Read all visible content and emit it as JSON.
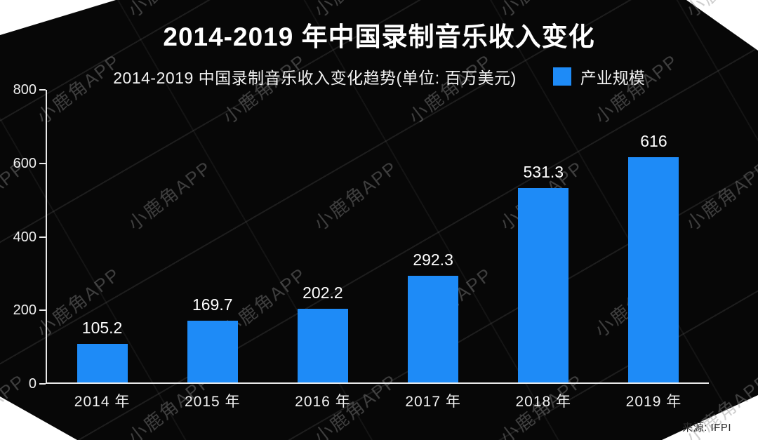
{
  "title": "2014-2019 年中国录制音乐收入变化",
  "subtitle": "2014-2019 中国录制音乐收入变化趋势(单位: 百万美元)",
  "legend": {
    "label": "产业规模",
    "color": "#1e8bf7"
  },
  "source": "来源: IFPI",
  "watermark": "小鹿角APP",
  "chart_data": {
    "type": "bar",
    "title": "2014-2019 中国录制音乐收入变化趋势",
    "unit_label": "单位: 百万美元",
    "categories": [
      "2014 年",
      "2015 年",
      "2016 年",
      "2017 年",
      "2018 年",
      "2019 年"
    ],
    "series": [
      {
        "name": "产业规模",
        "values": [
          105.2,
          169.7,
          202.2,
          292.3,
          531.3,
          616
        ]
      }
    ],
    "values": [
      105.2,
      169.7,
      202.2,
      292.3,
      531.3,
      616
    ],
    "value_labels": [
      "105.2",
      "169.7",
      "202.2",
      "292.3",
      "531.3",
      "616"
    ],
    "xlabel": "",
    "ylabel": "",
    "ylim": [
      0,
      800
    ],
    "yticks": [
      0,
      200,
      400,
      600,
      800
    ],
    "bar_color": "#1e8bf7",
    "background": "#070707",
    "legend_position": "top-right",
    "grid": false
  }
}
